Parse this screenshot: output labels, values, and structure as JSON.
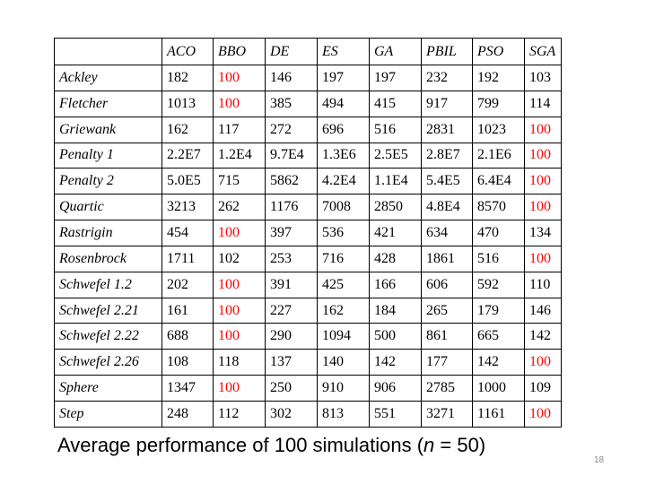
{
  "table": {
    "columns": [
      "ACO",
      "BBO",
      "DE",
      "ES",
      "GA",
      "PBIL",
      "PSO",
      "SGA"
    ],
    "best_color": "#ff0000",
    "rows": [
      {
        "name": "Ackley",
        "values": [
          "182",
          "100",
          "146",
          "197",
          "197",
          "232",
          "192",
          "103"
        ],
        "best": [
          1
        ]
      },
      {
        "name": "Fletcher",
        "values": [
          "1013",
          "100",
          "385",
          "494",
          "415",
          "917",
          "799",
          "114"
        ],
        "best": [
          1
        ]
      },
      {
        "name": "Griewank",
        "values": [
          "162",
          "117",
          "272",
          "696",
          "516",
          "2831",
          "1023",
          "100"
        ],
        "best": [
          7
        ]
      },
      {
        "name": "Penalty 1",
        "values": [
          "2.2E7",
          "1.2E4",
          "9.7E4",
          "1.3E6",
          "2.5E5",
          "2.8E7",
          "2.1E6",
          "100"
        ],
        "best": [
          7
        ]
      },
      {
        "name": "Penalty 2",
        "values": [
          "5.0E5",
          "715",
          "5862",
          "4.2E4",
          "1.1E4",
          "5.4E5",
          "6.4E4",
          "100"
        ],
        "best": [
          7
        ]
      },
      {
        "name": "Quartic",
        "values": [
          "3213",
          "262",
          "1176",
          "7008",
          "2850",
          "4.8E4",
          "8570",
          "100"
        ],
        "best": [
          7
        ]
      },
      {
        "name": "Rastrigin",
        "values": [
          "454",
          "100",
          "397",
          "536",
          "421",
          "634",
          "470",
          "134"
        ],
        "best": [
          1
        ]
      },
      {
        "name": "Rosenbrock",
        "values": [
          "1711",
          "102",
          "253",
          "716",
          "428",
          "1861",
          "516",
          "100"
        ],
        "best": [
          7
        ]
      },
      {
        "name": "Schwefel 1.2",
        "values": [
          "202",
          "100",
          "391",
          "425",
          "166",
          "606",
          "592",
          "110"
        ],
        "best": [
          1
        ]
      },
      {
        "name": "Schwefel 2.21",
        "values": [
          "161",
          "100",
          "227",
          "162",
          "184",
          "265",
          "179",
          "146"
        ],
        "best": [
          1
        ]
      },
      {
        "name": "Schwefel 2.22",
        "values": [
          "688",
          "100",
          "290",
          "1094",
          "500",
          "861",
          "665",
          "142"
        ],
        "best": [
          1
        ]
      },
      {
        "name": "Schwefel 2.26",
        "values": [
          "108",
          "118",
          "137",
          "140",
          "142",
          "177",
          "142",
          "100"
        ],
        "best": [
          7
        ]
      },
      {
        "name": "Sphere",
        "values": [
          "1347",
          "100",
          "250",
          "910",
          "906",
          "2785",
          "1000",
          "109"
        ],
        "best": [
          1
        ]
      },
      {
        "name": "Step",
        "values": [
          "248",
          "112",
          "302",
          "813",
          "551",
          "3271",
          "1161",
          "100"
        ],
        "best": [
          7
        ]
      }
    ]
  },
  "caption": {
    "before": "Average performance of 100 simulations (",
    "variable": "n",
    "after": " = 50)"
  },
  "page_number": "18"
}
